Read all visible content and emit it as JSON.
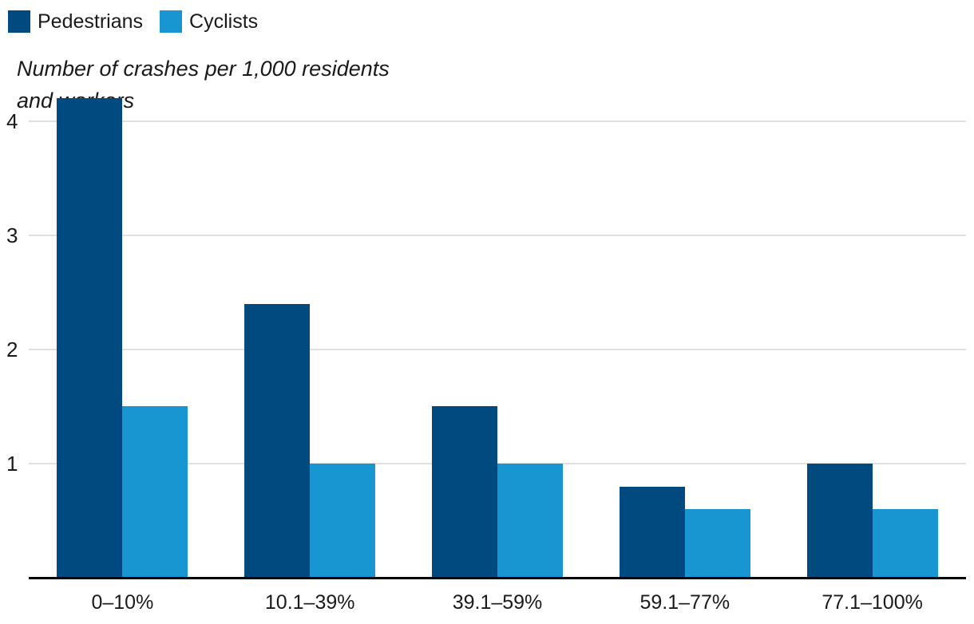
{
  "legend": {
    "items": [
      {
        "label": "Pedestrians",
        "color": "#004A80"
      },
      {
        "label": "Cyclists",
        "color": "#1796D2"
      }
    ]
  },
  "subtitle": "Number of crashes per 1,000 residents and workers",
  "chart_data": {
    "type": "bar",
    "categories": [
      "0–10%",
      "10.1–39%",
      "39.1–59%",
      "59.1–77%",
      "77.1–100%"
    ],
    "series": [
      {
        "name": "Pedestrians",
        "color": "#004A80",
        "values": [
          4.2,
          2.4,
          1.5,
          0.8,
          1.0
        ]
      },
      {
        "name": "Cyclists",
        "color": "#1796D2",
        "values": [
          1.5,
          1.0,
          1.0,
          0.6,
          0.6
        ]
      }
    ],
    "title": "",
    "xlabel": "",
    "ylabel": "Number of crashes per 1,000 residents and workers",
    "yticks": [
      1,
      2,
      3,
      4
    ],
    "ylim": [
      0,
      4.3
    ],
    "grid": true,
    "legend_position": "top-left",
    "axis_line_color": "#000000",
    "gridline_color": "#e0e0e0"
  }
}
